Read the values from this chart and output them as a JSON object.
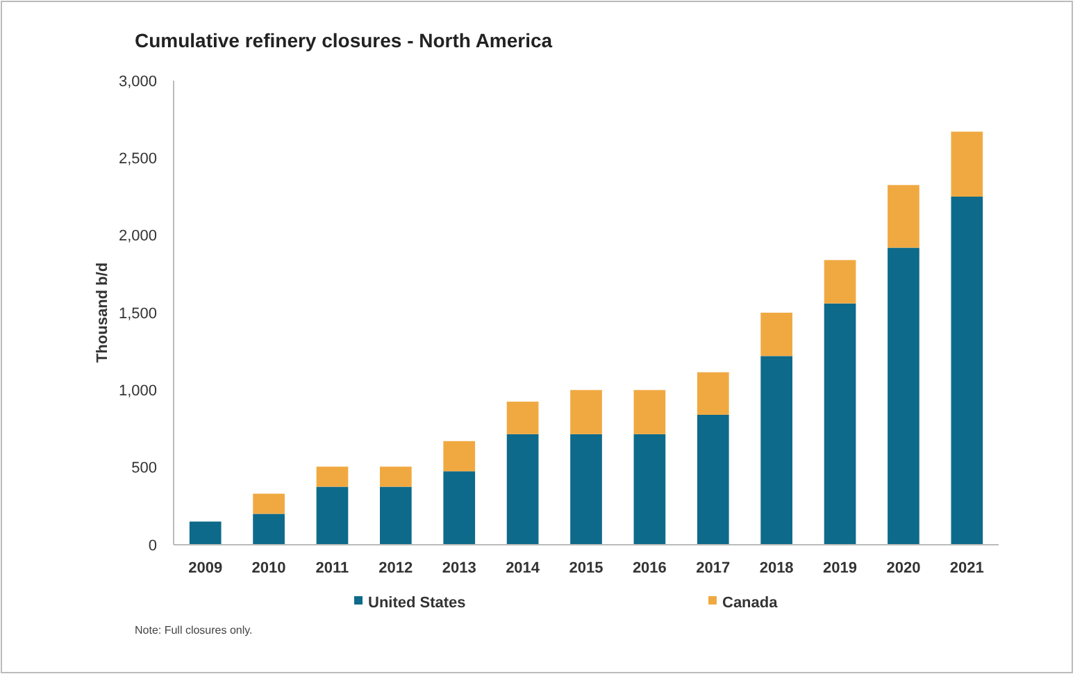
{
  "chart_data": {
    "type": "bar",
    "title": "Cumulative refinery closures - North America",
    "ylabel": "Thousand b/d",
    "categories": [
      "2009",
      "2010",
      "2011",
      "2012",
      "2013",
      "2014",
      "2015",
      "2016",
      "2017",
      "2018",
      "2019",
      "2020",
      "2021"
    ],
    "series": [
      {
        "name": "United States",
        "color": "#0e6a8a",
        "values": [
          150,
          200,
          375,
          375,
          475,
          715,
          715,
          715,
          840,
          1220,
          1560,
          1920,
          2250
        ]
      },
      {
        "name": "Canada",
        "color": "#f0a941",
        "values": [
          0,
          130,
          130,
          130,
          195,
          210,
          285,
          285,
          275,
          280,
          280,
          405,
          420
        ]
      }
    ],
    "stacked": true,
    "ylim": [
      0,
      3000
    ],
    "yticks": [
      {
        "value": 0,
        "label": "0"
      },
      {
        "value": 500,
        "label": "500"
      },
      {
        "value": 1000,
        "label": "1,000"
      },
      {
        "value": 1500,
        "label": "1,500"
      },
      {
        "value": 2000,
        "label": "2,000"
      },
      {
        "value": 2500,
        "label": "2,500"
      },
      {
        "value": 3000,
        "label": "3,000"
      }
    ],
    "grid": false,
    "legend": "bottom",
    "annotations": [
      "Note: Full closures only."
    ]
  }
}
